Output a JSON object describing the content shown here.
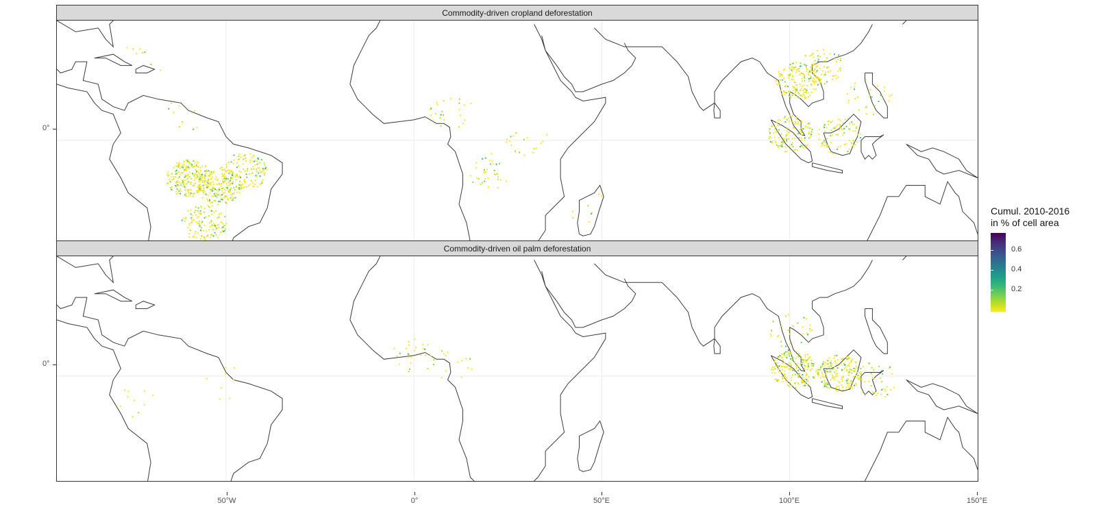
{
  "panels": [
    {
      "title": "Commodity-driven cropland deforestation",
      "hotspots": [
        {
          "lon": -72,
          "lat": 22,
          "n": 8
        },
        {
          "lon": -60,
          "lat": -10,
          "n": 220
        },
        {
          "lon": -52,
          "lat": -12,
          "n": 200
        },
        {
          "lon": -45,
          "lat": -8,
          "n": 120
        },
        {
          "lon": -56,
          "lat": -22,
          "n": 120
        },
        {
          "lon": -62,
          "lat": 6,
          "n": 10
        },
        {
          "lon": 10,
          "lat": 8,
          "n": 25
        },
        {
          "lon": 20,
          "lat": -8,
          "n": 35
        },
        {
          "lon": 30,
          "lat": 0,
          "n": 20
        },
        {
          "lon": 46,
          "lat": -18,
          "n": 8
        },
        {
          "lon": 102,
          "lat": 16,
          "n": 160
        },
        {
          "lon": 108,
          "lat": 20,
          "n": 80
        },
        {
          "lon": 100,
          "lat": 2,
          "n": 120
        },
        {
          "lon": 113,
          "lat": 1,
          "n": 80
        },
        {
          "lon": 121,
          "lat": 12,
          "n": 30
        }
      ]
    },
    {
      "title": "Commodity-driven oil palm deforestation",
      "hotspots": [
        {
          "lon": -75,
          "lat": -6,
          "n": 10
        },
        {
          "lon": -50,
          "lat": -2,
          "n": 8
        },
        {
          "lon": 0,
          "lat": 6,
          "n": 25
        },
        {
          "lon": 10,
          "lat": 4,
          "n": 15
        },
        {
          "lon": 101,
          "lat": 2,
          "n": 180
        },
        {
          "lon": 113,
          "lat": 1,
          "n": 180
        },
        {
          "lon": 123,
          "lat": -1,
          "n": 40
        },
        {
          "lon": 100,
          "lat": 12,
          "n": 30
        }
      ]
    }
  ],
  "axes": {
    "xticks": [
      "50°W",
      "0°",
      "50°E",
      "100°E",
      "150°E"
    ],
    "ytick": "0°"
  },
  "legend": {
    "title_line1": "Cumul. 2010-2016",
    "title_line2": "in % of cell area",
    "ticks": [
      "0.6",
      "0.4",
      "0.2"
    ]
  }
}
